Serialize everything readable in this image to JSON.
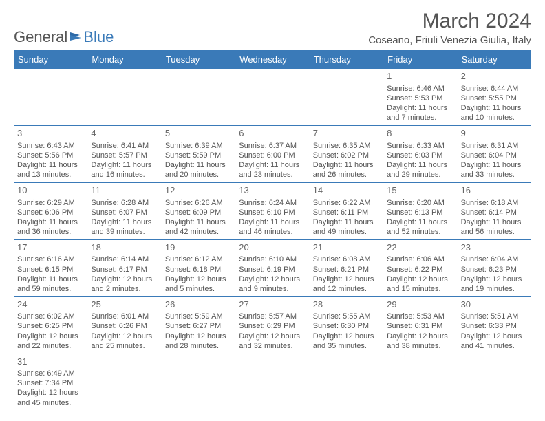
{
  "brand": {
    "part1": "General",
    "part2": "Blue"
  },
  "title": "March 2024",
  "location": "Coseano, Friuli Venezia Giulia, Italy",
  "colors": {
    "header_bg": "#3a7ab8",
    "header_text": "#ffffff",
    "body_text": "#555555",
    "rule": "#3a7ab8",
    "background": "#ffffff"
  },
  "day_headers": [
    "Sunday",
    "Monday",
    "Tuesday",
    "Wednesday",
    "Thursday",
    "Friday",
    "Saturday"
  ],
  "weeks": [
    [
      null,
      null,
      null,
      null,
      null,
      {
        "n": "1",
        "sr": "Sunrise: 6:46 AM",
        "ss": "Sunset: 5:53 PM",
        "dl1": "Daylight: 11 hours",
        "dl2": "and 7 minutes."
      },
      {
        "n": "2",
        "sr": "Sunrise: 6:44 AM",
        "ss": "Sunset: 5:55 PM",
        "dl1": "Daylight: 11 hours",
        "dl2": "and 10 minutes."
      }
    ],
    [
      {
        "n": "3",
        "sr": "Sunrise: 6:43 AM",
        "ss": "Sunset: 5:56 PM",
        "dl1": "Daylight: 11 hours",
        "dl2": "and 13 minutes."
      },
      {
        "n": "4",
        "sr": "Sunrise: 6:41 AM",
        "ss": "Sunset: 5:57 PM",
        "dl1": "Daylight: 11 hours",
        "dl2": "and 16 minutes."
      },
      {
        "n": "5",
        "sr": "Sunrise: 6:39 AM",
        "ss": "Sunset: 5:59 PM",
        "dl1": "Daylight: 11 hours",
        "dl2": "and 20 minutes."
      },
      {
        "n": "6",
        "sr": "Sunrise: 6:37 AM",
        "ss": "Sunset: 6:00 PM",
        "dl1": "Daylight: 11 hours",
        "dl2": "and 23 minutes."
      },
      {
        "n": "7",
        "sr": "Sunrise: 6:35 AM",
        "ss": "Sunset: 6:02 PM",
        "dl1": "Daylight: 11 hours",
        "dl2": "and 26 minutes."
      },
      {
        "n": "8",
        "sr": "Sunrise: 6:33 AM",
        "ss": "Sunset: 6:03 PM",
        "dl1": "Daylight: 11 hours",
        "dl2": "and 29 minutes."
      },
      {
        "n": "9",
        "sr": "Sunrise: 6:31 AM",
        "ss": "Sunset: 6:04 PM",
        "dl1": "Daylight: 11 hours",
        "dl2": "and 33 minutes."
      }
    ],
    [
      {
        "n": "10",
        "sr": "Sunrise: 6:29 AM",
        "ss": "Sunset: 6:06 PM",
        "dl1": "Daylight: 11 hours",
        "dl2": "and 36 minutes."
      },
      {
        "n": "11",
        "sr": "Sunrise: 6:28 AM",
        "ss": "Sunset: 6:07 PM",
        "dl1": "Daylight: 11 hours",
        "dl2": "and 39 minutes."
      },
      {
        "n": "12",
        "sr": "Sunrise: 6:26 AM",
        "ss": "Sunset: 6:09 PM",
        "dl1": "Daylight: 11 hours",
        "dl2": "and 42 minutes."
      },
      {
        "n": "13",
        "sr": "Sunrise: 6:24 AM",
        "ss": "Sunset: 6:10 PM",
        "dl1": "Daylight: 11 hours",
        "dl2": "and 46 minutes."
      },
      {
        "n": "14",
        "sr": "Sunrise: 6:22 AM",
        "ss": "Sunset: 6:11 PM",
        "dl1": "Daylight: 11 hours",
        "dl2": "and 49 minutes."
      },
      {
        "n": "15",
        "sr": "Sunrise: 6:20 AM",
        "ss": "Sunset: 6:13 PM",
        "dl1": "Daylight: 11 hours",
        "dl2": "and 52 minutes."
      },
      {
        "n": "16",
        "sr": "Sunrise: 6:18 AM",
        "ss": "Sunset: 6:14 PM",
        "dl1": "Daylight: 11 hours",
        "dl2": "and 56 minutes."
      }
    ],
    [
      {
        "n": "17",
        "sr": "Sunrise: 6:16 AM",
        "ss": "Sunset: 6:15 PM",
        "dl1": "Daylight: 11 hours",
        "dl2": "and 59 minutes."
      },
      {
        "n": "18",
        "sr": "Sunrise: 6:14 AM",
        "ss": "Sunset: 6:17 PM",
        "dl1": "Daylight: 12 hours",
        "dl2": "and 2 minutes."
      },
      {
        "n": "19",
        "sr": "Sunrise: 6:12 AM",
        "ss": "Sunset: 6:18 PM",
        "dl1": "Daylight: 12 hours",
        "dl2": "and 5 minutes."
      },
      {
        "n": "20",
        "sr": "Sunrise: 6:10 AM",
        "ss": "Sunset: 6:19 PM",
        "dl1": "Daylight: 12 hours",
        "dl2": "and 9 minutes."
      },
      {
        "n": "21",
        "sr": "Sunrise: 6:08 AM",
        "ss": "Sunset: 6:21 PM",
        "dl1": "Daylight: 12 hours",
        "dl2": "and 12 minutes."
      },
      {
        "n": "22",
        "sr": "Sunrise: 6:06 AM",
        "ss": "Sunset: 6:22 PM",
        "dl1": "Daylight: 12 hours",
        "dl2": "and 15 minutes."
      },
      {
        "n": "23",
        "sr": "Sunrise: 6:04 AM",
        "ss": "Sunset: 6:23 PM",
        "dl1": "Daylight: 12 hours",
        "dl2": "and 19 minutes."
      }
    ],
    [
      {
        "n": "24",
        "sr": "Sunrise: 6:02 AM",
        "ss": "Sunset: 6:25 PM",
        "dl1": "Daylight: 12 hours",
        "dl2": "and 22 minutes."
      },
      {
        "n": "25",
        "sr": "Sunrise: 6:01 AM",
        "ss": "Sunset: 6:26 PM",
        "dl1": "Daylight: 12 hours",
        "dl2": "and 25 minutes."
      },
      {
        "n": "26",
        "sr": "Sunrise: 5:59 AM",
        "ss": "Sunset: 6:27 PM",
        "dl1": "Daylight: 12 hours",
        "dl2": "and 28 minutes."
      },
      {
        "n": "27",
        "sr": "Sunrise: 5:57 AM",
        "ss": "Sunset: 6:29 PM",
        "dl1": "Daylight: 12 hours",
        "dl2": "and 32 minutes."
      },
      {
        "n": "28",
        "sr": "Sunrise: 5:55 AM",
        "ss": "Sunset: 6:30 PM",
        "dl1": "Daylight: 12 hours",
        "dl2": "and 35 minutes."
      },
      {
        "n": "29",
        "sr": "Sunrise: 5:53 AM",
        "ss": "Sunset: 6:31 PM",
        "dl1": "Daylight: 12 hours",
        "dl2": "and 38 minutes."
      },
      {
        "n": "30",
        "sr": "Sunrise: 5:51 AM",
        "ss": "Sunset: 6:33 PM",
        "dl1": "Daylight: 12 hours",
        "dl2": "and 41 minutes."
      }
    ],
    [
      {
        "n": "31",
        "sr": "Sunrise: 6:49 AM",
        "ss": "Sunset: 7:34 PM",
        "dl1": "Daylight: 12 hours",
        "dl2": "and 45 minutes."
      },
      null,
      null,
      null,
      null,
      null,
      null
    ]
  ]
}
